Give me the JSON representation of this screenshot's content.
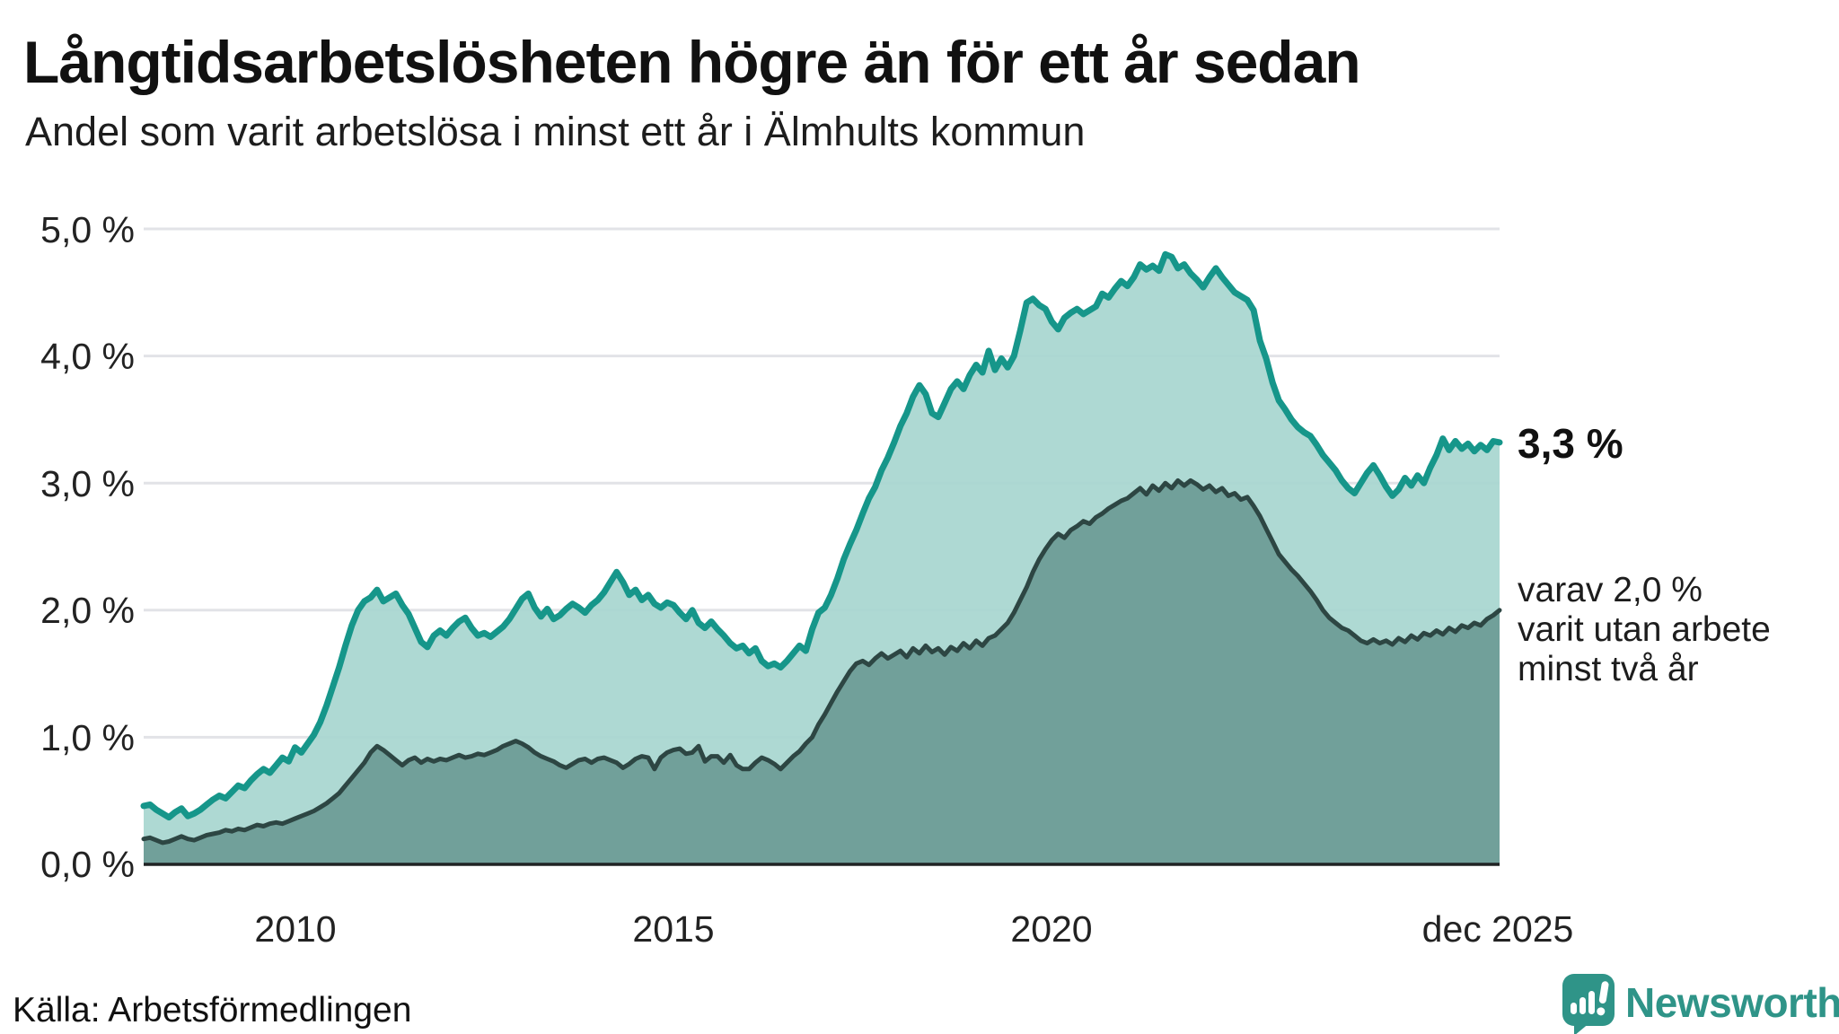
{
  "header": {
    "title": "Långtidsarbetslösheten högre än för ett år sedan",
    "subtitle": "Andel som varit arbetslösa i minst ett år i Älmhults kommun"
  },
  "source": {
    "label": "Källa: Arbetsförmedlingen"
  },
  "branding": {
    "logo_text": "Newsworthy",
    "logo_color": "#2f9488",
    "logo_icon": "speech-bubble-bar-chart"
  },
  "colors": {
    "long_term_line": "#16968a",
    "long_term_fill": "#a8d6d0",
    "very_long_term_line": "#2d4643",
    "very_long_term_fill": "#6e9d97",
    "gridline": "#e2e3e7",
    "axis_line": "#202324",
    "text": "#111111"
  },
  "chart_data": {
    "type": "area",
    "title": "Långtidsarbetslösheten högre än för ett år sedan",
    "subtitle": "Andel som varit arbetslösa i minst ett år i Älmhults kommun",
    "ylabel": "",
    "xlabel": "",
    "ylim": [
      0,
      5
    ],
    "grid": "horizontal",
    "x_start_year": 2008.0,
    "x_end_year": 2025.92,
    "x_tick_labels": [
      "2010",
      "2015",
      "2020",
      "dec 2025"
    ],
    "x_tick_years": [
      2010,
      2015,
      2020,
      2025.92
    ],
    "y_tick_labels": [
      "5,0 %",
      "4,0 %",
      "3,0 %",
      "2,0 %",
      "1,0 %",
      "0,0 %"
    ],
    "y_tick_values": [
      5,
      4,
      3,
      2,
      1,
      0
    ],
    "annotations": {
      "end_label": "3,3 %",
      "end_value_pct": 3.3,
      "side_note_lines": [
        "varav 2,0 %",
        "varit utan arbete",
        "minst två år"
      ],
      "side_note_value_pct": 2.0
    },
    "series": [
      {
        "key": "unemployed_min_one_year",
        "values_pct": [
          0.46,
          0.47,
          0.43,
          0.4,
          0.37,
          0.41,
          0.44,
          0.38,
          0.4,
          0.43,
          0.47,
          0.51,
          0.54,
          0.52,
          0.57,
          0.62,
          0.6,
          0.66,
          0.71,
          0.75,
          0.72,
          0.78,
          0.84,
          0.81,
          0.92,
          0.88,
          0.95,
          1.02,
          1.12,
          1.25,
          1.4,
          1.55,
          1.72,
          1.88,
          2.0,
          2.07,
          2.1,
          2.16,
          2.07,
          2.1,
          2.13,
          2.04,
          1.97,
          1.86,
          1.75,
          1.71,
          1.8,
          1.84,
          1.8,
          1.86,
          1.91,
          1.94,
          1.86,
          1.8,
          1.82,
          1.79,
          1.83,
          1.87,
          1.93,
          2.01,
          2.09,
          2.13,
          2.02,
          1.95,
          2.01,
          1.93,
          1.96,
          2.01,
          2.05,
          2.02,
          1.98,
          2.04,
          2.08,
          2.14,
          2.22,
          2.3,
          2.22,
          2.12,
          2.16,
          2.08,
          2.12,
          2.05,
          2.02,
          2.06,
          2.04,
          1.98,
          1.93,
          2.0,
          1.9,
          1.86,
          1.91,
          1.85,
          1.8,
          1.74,
          1.7,
          1.72,
          1.66,
          1.7,
          1.6,
          1.56,
          1.58,
          1.55,
          1.6,
          1.66,
          1.72,
          1.68,
          1.85,
          1.98,
          2.02,
          2.12,
          2.25,
          2.4,
          2.52,
          2.63,
          2.76,
          2.88,
          2.97,
          3.1,
          3.2,
          3.32,
          3.45,
          3.55,
          3.68,
          3.77,
          3.7,
          3.55,
          3.52,
          3.63,
          3.74,
          3.8,
          3.74,
          3.85,
          3.93,
          3.87,
          4.04,
          3.89,
          3.98,
          3.91,
          4.0,
          4.2,
          4.42,
          4.45,
          4.4,
          4.37,
          4.27,
          4.21,
          4.3,
          4.34,
          4.37,
          4.33,
          4.36,
          4.39,
          4.49,
          4.46,
          4.53,
          4.59,
          4.55,
          4.62,
          4.72,
          4.68,
          4.71,
          4.67,
          4.8,
          4.78,
          4.69,
          4.72,
          4.65,
          4.6,
          4.54,
          4.62,
          4.69,
          4.62,
          4.56,
          4.5,
          4.47,
          4.44,
          4.36,
          4.12,
          3.98,
          3.79,
          3.65,
          3.58,
          3.5,
          3.44,
          3.4,
          3.37,
          3.3,
          3.22,
          3.16,
          3.1,
          3.02,
          2.96,
          2.92,
          3.0,
          3.08,
          3.14,
          3.06,
          2.97,
          2.9,
          2.95,
          3.04,
          2.98,
          3.06,
          3.0,
          3.12,
          3.22,
          3.35,
          3.26,
          3.33,
          3.27,
          3.31,
          3.25,
          3.3,
          3.26,
          3.33,
          3.32
        ]
      },
      {
        "key": "unemployed_min_two_years",
        "values_pct": [
          0.2,
          0.21,
          0.19,
          0.17,
          0.18,
          0.2,
          0.22,
          0.2,
          0.19,
          0.21,
          0.23,
          0.24,
          0.25,
          0.27,
          0.26,
          0.28,
          0.27,
          0.29,
          0.31,
          0.3,
          0.32,
          0.33,
          0.32,
          0.34,
          0.36,
          0.38,
          0.4,
          0.42,
          0.45,
          0.48,
          0.52,
          0.56,
          0.62,
          0.68,
          0.74,
          0.8,
          0.88,
          0.93,
          0.9,
          0.86,
          0.82,
          0.78,
          0.82,
          0.84,
          0.8,
          0.83,
          0.81,
          0.83,
          0.82,
          0.84,
          0.86,
          0.84,
          0.85,
          0.87,
          0.86,
          0.88,
          0.9,
          0.93,
          0.95,
          0.97,
          0.95,
          0.92,
          0.88,
          0.85,
          0.83,
          0.81,
          0.78,
          0.76,
          0.79,
          0.82,
          0.83,
          0.8,
          0.83,
          0.84,
          0.82,
          0.8,
          0.76,
          0.79,
          0.83,
          0.85,
          0.84,
          0.75,
          0.84,
          0.88,
          0.9,
          0.91,
          0.87,
          0.88,
          0.93,
          0.81,
          0.85,
          0.85,
          0.8,
          0.86,
          0.78,
          0.75,
          0.75,
          0.8,
          0.84,
          0.82,
          0.79,
          0.75,
          0.8,
          0.85,
          0.89,
          0.95,
          1.0,
          1.1,
          1.18,
          1.27,
          1.36,
          1.44,
          1.52,
          1.58,
          1.6,
          1.57,
          1.62,
          1.66,
          1.62,
          1.65,
          1.68,
          1.63,
          1.7,
          1.66,
          1.72,
          1.67,
          1.7,
          1.65,
          1.71,
          1.68,
          1.74,
          1.7,
          1.76,
          1.72,
          1.78,
          1.8,
          1.85,
          1.9,
          1.98,
          2.08,
          2.18,
          2.3,
          2.4,
          2.48,
          2.55,
          2.6,
          2.57,
          2.63,
          2.66,
          2.7,
          2.68,
          2.73,
          2.76,
          2.8,
          2.83,
          2.86,
          2.88,
          2.92,
          2.96,
          2.91,
          2.98,
          2.94,
          3.0,
          2.96,
          3.02,
          2.98,
          3.02,
          2.99,
          2.95,
          2.98,
          2.93,
          2.96,
          2.9,
          2.92,
          2.87,
          2.89,
          2.82,
          2.74,
          2.64,
          2.54,
          2.44,
          2.38,
          2.32,
          2.27,
          2.21,
          2.15,
          2.08,
          2.0,
          1.94,
          1.9,
          1.86,
          1.84,
          1.8,
          1.76,
          1.74,
          1.77,
          1.74,
          1.76,
          1.73,
          1.78,
          1.75,
          1.8,
          1.77,
          1.82,
          1.8,
          1.84,
          1.81,
          1.86,
          1.83,
          1.88,
          1.86,
          1.9,
          1.88,
          1.93,
          1.96,
          2.0
        ]
      }
    ]
  }
}
